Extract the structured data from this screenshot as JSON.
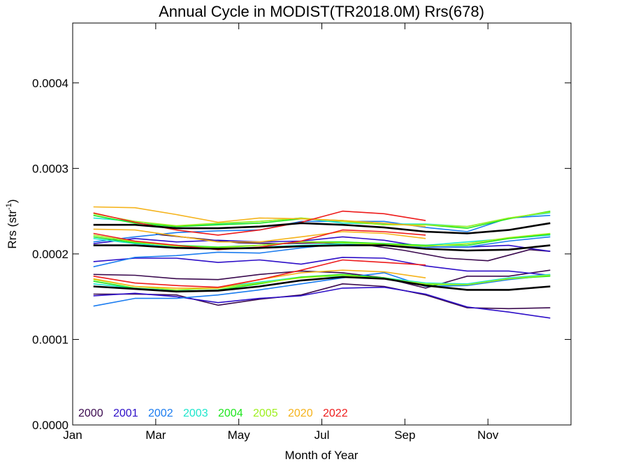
{
  "chart_data": {
    "type": "line",
    "title": "Annual Cycle in MODIST(TR2018.0M) Rrs(678)",
    "xlabel": "Month of Year",
    "ylabel_main": "Rrs (str",
    "ylabel_sup": "-1",
    "ylabel_close": ")",
    "xlim": [
      1,
      13
    ],
    "ylim": [
      0.0,
      0.00047
    ],
    "x_ticks": [
      {
        "value": 1,
        "label": "Jan"
      },
      {
        "value": 3,
        "label": "Mar"
      },
      {
        "value": 5,
        "label": "May"
      },
      {
        "value": 7,
        "label": "Jul"
      },
      {
        "value": 9,
        "label": "Sep"
      },
      {
        "value": 11,
        "label": "Nov"
      }
    ],
    "y_ticks": [
      {
        "value": 0.0,
        "label": "0.0000"
      },
      {
        "value": 0.0001,
        "label": "0.0001"
      },
      {
        "value": 0.0002,
        "label": "0.0002"
      },
      {
        "value": 0.0003,
        "label": "0.0003"
      },
      {
        "value": 0.0004,
        "label": "0.0004"
      }
    ],
    "grid": false,
    "legend_position": "bottom-left",
    "series": [
      {
        "name": "2000",
        "color": "#3b0a4f",
        "role": "low",
        "x": [
          1.5,
          2.5,
          3.5,
          4.5,
          5.5,
          6.5,
          7.5,
          8.5,
          9.5,
          10.5,
          11.5,
          12.5
        ],
        "y": [
          0.000153,
          0.000153,
          0.000152,
          0.00014,
          0.000147,
          0.000152,
          0.000165,
          0.000162,
          0.000152,
          0.000137,
          0.000136,
          0.000137
        ]
      },
      {
        "name": "2000",
        "color": "#3b0a4f",
        "role": "mid",
        "x": [
          1.5,
          2.5,
          3.5,
          4.5,
          5.5,
          6.5,
          7.5,
          8.5,
          9.5,
          10.5,
          11.5,
          12.5
        ],
        "y": [
          0.000176,
          0.000175,
          0.000171,
          0.00017,
          0.000176,
          0.00018,
          0.000178,
          0.000172,
          0.00016,
          0.000174,
          0.000174,
          0.000181
        ]
      },
      {
        "name": "2000",
        "color": "#3b0a4f",
        "role": "high",
        "x": [
          3.0,
          4.0,
          5.0,
          6.0,
          7.0,
          8.0,
          9.0,
          10.0,
          11.0,
          12.0,
          12.5
        ],
        "y": [
          0.000223,
          0.000218,
          0.000213,
          0.000212,
          0.000213,
          0.000211,
          0.000204,
          0.000195,
          0.000192,
          0.000205,
          0.000203
        ]
      },
      {
        "name": "2001",
        "color": "#2e0fc8",
        "role": "low",
        "x": [
          1.5,
          2.5,
          3.5,
          4.5,
          5.5,
          6.5,
          7.5,
          8.5,
          9.5,
          10.5,
          11.5,
          12.5
        ],
        "y": [
          0.000151,
          0.000154,
          0.00015,
          0.000143,
          0.000148,
          0.000151,
          0.00016,
          0.000161,
          0.000153,
          0.000138,
          0.000132,
          0.000125
        ]
      },
      {
        "name": "2001",
        "color": "#2e0fc8",
        "role": "mid",
        "x": [
          1.5,
          2.5,
          3.5,
          4.5,
          5.5,
          6.5,
          7.5,
          8.5,
          9.5,
          10.5,
          11.5,
          12.5
        ],
        "y": [
          0.000191,
          0.000195,
          0.000195,
          0.00019,
          0.000193,
          0.000188,
          0.000196,
          0.000195,
          0.000186,
          0.00018,
          0.00018,
          0.000175
        ]
      },
      {
        "name": "2001",
        "color": "#2e0fc8",
        "role": "high",
        "x": [
          1.5,
          2.5,
          3.5,
          4.5,
          5.5,
          6.5,
          7.5,
          8.5,
          9.5,
          10.5,
          11.5,
          12.5
        ],
        "y": [
          0.000212,
          0.000218,
          0.000214,
          0.000216,
          0.000214,
          0.000215,
          0.00022,
          0.000216,
          0.000208,
          0.000208,
          0.00021,
          0.000203
        ]
      },
      {
        "name": "2002",
        "color": "#1b7cf0",
        "role": "low",
        "x": [
          1.5,
          2.5,
          3.5,
          4.5,
          5.5,
          6.5,
          7.5,
          8.5,
          9.5,
          10.5,
          11.5,
          12.5
        ],
        "y": [
          0.000139,
          0.000148,
          0.000148,
          0.000152,
          0.000158,
          0.000165,
          0.000172,
          0.000178,
          0.000162,
          0.000163,
          0.00017,
          0.000175
        ]
      },
      {
        "name": "2002",
        "color": "#1b7cf0",
        "role": "mid",
        "x": [
          1.5,
          2.5,
          3.5,
          4.5,
          5.5,
          6.5,
          7.5,
          8.5,
          9.5,
          10.5,
          11.5,
          12.5
        ],
        "y": [
          0.000185,
          0.000196,
          0.000198,
          0.000202,
          0.000201,
          0.000207,
          0.000212,
          0.00021,
          0.000208,
          0.000208,
          0.000215,
          0.00022
        ]
      },
      {
        "name": "2002",
        "color": "#1b7cf0",
        "role": "high",
        "x": [
          1.5,
          2.5,
          3.5,
          4.5,
          5.5,
          6.5,
          7.5,
          8.5,
          9.5,
          10.5,
          11.5,
          12.5
        ],
        "y": [
          0.000214,
          0.00022,
          0.000225,
          0.000227,
          0.000228,
          0.000238,
          0.000238,
          0.000238,
          0.000231,
          0.000226,
          0.000242,
          0.000245
        ]
      },
      {
        "name": "2003",
        "color": "#1ee6cc",
        "role": "low",
        "x": [
          1.5,
          2.5,
          3.5,
          4.5,
          5.5,
          6.5,
          7.5,
          8.5,
          9.5,
          10.5,
          11.5,
          12.5
        ],
        "y": [
          0.000165,
          0.00016,
          0.000157,
          0.000161,
          0.000167,
          0.000173,
          0.000174,
          0.000172,
          0.000166,
          0.000165,
          0.000172,
          0.000176
        ]
      },
      {
        "name": "2003",
        "color": "#1ee6cc",
        "role": "mid",
        "x": [
          1.5,
          2.5,
          3.5,
          4.5,
          5.5,
          6.5,
          7.5,
          8.5,
          9.5,
          10.5,
          11.5,
          12.5
        ],
        "y": [
          0.000218,
          0.000212,
          0.000208,
          0.000206,
          0.000208,
          0.00021,
          0.000212,
          0.000212,
          0.00021,
          0.000214,
          0.000218,
          0.000222
        ]
      },
      {
        "name": "2003",
        "color": "#1ee6cc",
        "role": "high",
        "x": [
          1.5,
          2.5,
          3.5,
          4.5,
          5.5,
          6.5,
          7.5,
          8.5,
          9.5,
          10.5,
          11.5,
          12.5
        ],
        "y": [
          0.000242,
          0.000238,
          0.000232,
          0.000235,
          0.000238,
          0.000242,
          0.000236,
          0.000235,
          0.000235,
          0.000232,
          0.000242,
          0.000248
        ]
      },
      {
        "name": "2004",
        "color": "#1ee61e",
        "role": "low",
        "x": [
          1.5,
          2.5,
          3.5,
          4.5,
          5.5,
          6.5,
          7.5,
          8.5,
          9.5,
          10.5,
          11.5,
          12.5
        ],
        "y": [
          0.000168,
          0.00016,
          0.000156,
          0.000158,
          0.000165,
          0.000173,
          0.000176,
          0.000172,
          0.000164,
          0.000164,
          0.000171,
          0.000174
        ]
      },
      {
        "name": "2004",
        "color": "#1ee61e",
        "role": "mid",
        "x": [
          1.5,
          2.5,
          3.5,
          4.5,
          5.5,
          6.5,
          7.5,
          8.5,
          9.5,
          10.5,
          11.5,
          12.5
        ],
        "y": [
          0.00022,
          0.000213,
          0.00021,
          0.000208,
          0.00021,
          0.000214,
          0.000214,
          0.000212,
          0.00021,
          0.00021,
          0.000218,
          0.000223
        ]
      },
      {
        "name": "2004",
        "color": "#1ee61e",
        "role": "high",
        "x": [
          1.5,
          2.5,
          3.5,
          4.5,
          5.5,
          6.5,
          7.5,
          8.5,
          9.5,
          10.5,
          11.5,
          12.5
        ],
        "y": [
          0.000245,
          0.000236,
          0.000232,
          0.000234,
          0.000236,
          0.000241,
          0.000239,
          0.000234,
          0.000234,
          0.00023,
          0.000241,
          0.00025
        ]
      },
      {
        "name": "2005",
        "color": "#9ef01e",
        "role": "low",
        "x": [
          1.5,
          2.5,
          3.5,
          4.5,
          5.5,
          6.5,
          7.5,
          8.5,
          9.5,
          10.5,
          11.5,
          12.5
        ],
        "y": [
          0.00017,
          0.000162,
          0.000158,
          0.00016,
          0.000166,
          0.000172,
          0.000175,
          0.000171,
          0.000165,
          0.000164,
          0.000171,
          0.000175
        ]
      },
      {
        "name": "2005",
        "color": "#9ef01e",
        "role": "mid",
        "x": [
          1.5,
          2.5,
          3.5,
          4.5,
          5.5,
          6.5,
          7.5,
          8.5,
          9.5,
          10.5,
          11.5,
          12.5
        ],
        "y": [
          0.000222,
          0.000214,
          0.000209,
          0.000207,
          0.00021,
          0.000214,
          0.000213,
          0.000211,
          0.000209,
          0.000212,
          0.000219,
          0.000224
        ]
      },
      {
        "name": "2005",
        "color": "#9ef01e",
        "role": "high",
        "x": [
          1.5,
          2.5,
          3.5,
          4.5,
          5.5,
          6.5,
          7.5,
          8.5,
          9.5,
          10.5,
          11.5,
          12.5
        ],
        "y": [
          0.000247,
          0.000238,
          0.000233,
          0.000236,
          0.000238,
          0.000242,
          0.000238,
          0.000234,
          0.000234,
          0.000232,
          0.000242,
          0.000249
        ]
      },
      {
        "name": "2020",
        "color": "#f5b31b",
        "role": "low",
        "x": [
          1.5,
          2.5,
          3.5,
          4.5,
          5.5,
          6.5,
          7.5,
          8.5,
          9.5
        ],
        "y": [
          0.000171,
          0.000162,
          0.00016,
          0.00016,
          0.00017,
          0.000178,
          0.000181,
          0.000179,
          0.000172
        ]
      },
      {
        "name": "2020",
        "color": "#f5b31b",
        "role": "mid",
        "x": [
          1.5,
          2.5,
          3.5,
          4.5,
          5.5,
          6.5,
          7.5,
          8.5,
          9.5
        ],
        "y": [
          0.000229,
          0.000228,
          0.000221,
          0.000214,
          0.000214,
          0.00022,
          0.000226,
          0.000224,
          0.000218
        ]
      },
      {
        "name": "2020",
        "color": "#f5b31b",
        "role": "high",
        "x": [
          1.5,
          2.5,
          3.5,
          4.5,
          5.5,
          6.5,
          7.5,
          8.5,
          9.5
        ],
        "y": [
          0.000255,
          0.000254,
          0.000246,
          0.000237,
          0.000242,
          0.000241,
          0.000239,
          0.000236,
          0.000232
        ]
      },
      {
        "name": "2022",
        "color": "#ee1c1c",
        "role": "low",
        "x": [
          1.5,
          2.5,
          3.5,
          4.5,
          5.5,
          6.5,
          7.5,
          8.5,
          9.5
        ],
        "y": [
          0.000174,
          0.000166,
          0.000163,
          0.000161,
          0.00017,
          0.000181,
          0.000193,
          0.00019,
          0.000187
        ]
      },
      {
        "name": "2022",
        "color": "#ee1c1c",
        "role": "mid",
        "x": [
          1.5,
          2.5,
          3.5,
          4.5,
          5.5,
          6.5,
          7.5,
          8.5,
          9.5
        ],
        "y": [
          0.000224,
          0.000215,
          0.00021,
          0.000205,
          0.000208,
          0.000215,
          0.000228,
          0.000226,
          0.000222
        ]
      },
      {
        "name": "2022",
        "color": "#ee1c1c",
        "role": "high",
        "x": [
          1.5,
          2.5,
          3.5,
          4.5,
          5.5,
          6.5,
          7.5,
          8.5,
          9.5
        ],
        "y": [
          0.000248,
          0.000237,
          0.000228,
          0.000222,
          0.000228,
          0.000237,
          0.00025,
          0.000247,
          0.000239
        ]
      },
      {
        "name": "",
        "color": "#000000",
        "role": "mean-low",
        "x": [
          1.5,
          2.5,
          3.5,
          4.5,
          5.5,
          6.5,
          7.5,
          8.5,
          9.5,
          10.5,
          11.5,
          12.5
        ],
        "y": [
          0.000162,
          0.000159,
          0.000156,
          0.000157,
          0.000162,
          0.000169,
          0.000173,
          0.000171,
          0.000163,
          0.000158,
          0.000158,
          0.000162
        ]
      },
      {
        "name": "",
        "color": "#000000",
        "role": "mean-mid",
        "x": [
          1.5,
          2.5,
          3.5,
          4.5,
          5.5,
          6.5,
          7.5,
          8.5,
          9.5,
          10.5,
          11.5,
          12.5
        ],
        "y": [
          0.00021,
          0.00021,
          0.000207,
          0.000206,
          0.000207,
          0.000209,
          0.00021,
          0.00021,
          0.000206,
          0.000204,
          0.000205,
          0.00021
        ]
      },
      {
        "name": "",
        "color": "#000000",
        "role": "mean-high",
        "x": [
          1.5,
          2.5,
          3.5,
          4.5,
          5.5,
          6.5,
          7.5,
          8.5,
          9.5,
          10.5,
          11.5,
          12.5
        ],
        "y": [
          0.000234,
          0.000234,
          0.00023,
          0.00023,
          0.000232,
          0.000236,
          0.000234,
          0.000231,
          0.000226,
          0.000224,
          0.000228,
          0.000236
        ]
      }
    ],
    "legend": [
      {
        "label": "2000",
        "color": "#3b0a4f"
      },
      {
        "label": "2001",
        "color": "#2e0fc8"
      },
      {
        "label": "2002",
        "color": "#1b7cf0"
      },
      {
        "label": "2003",
        "color": "#1ee6cc"
      },
      {
        "label": "2004",
        "color": "#1ee61e"
      },
      {
        "label": "2005",
        "color": "#9ef01e"
      },
      {
        "label": "2020",
        "color": "#f5b31b"
      },
      {
        "label": "2022",
        "color": "#ee1c1c"
      }
    ]
  }
}
